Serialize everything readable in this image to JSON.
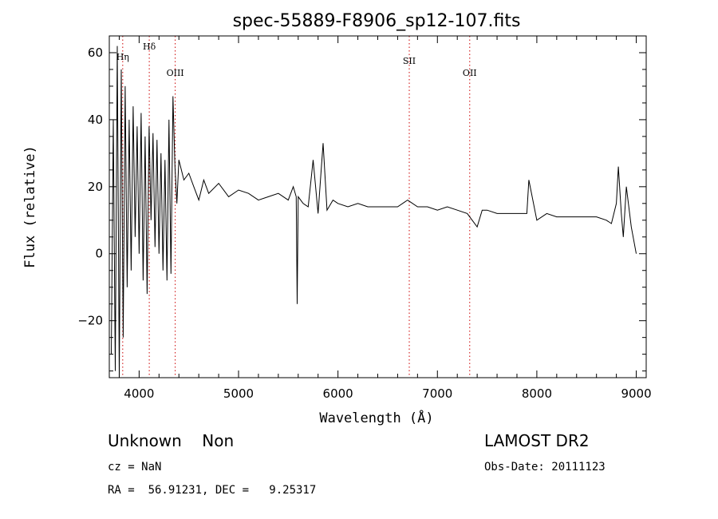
{
  "chart_data": {
    "type": "line",
    "title": "spec-55889-F8906_sp12-107.fits",
    "xlabel": "Wavelength (Å)",
    "ylabel": "Flux (relative)",
    "xlim": [
      3700,
      9100
    ],
    "ylim": [
      -37,
      65
    ],
    "x_ticks": [
      4000,
      5000,
      6000,
      7000,
      8000,
      9000
    ],
    "y_ticks": [
      -20,
      0,
      20,
      40,
      60
    ],
    "grid": false,
    "line_markers": [
      {
        "label": "Hη",
        "x": 3835,
        "color": "#cc0000"
      },
      {
        "label": "Hδ",
        "x": 4102,
        "color": "#cc0000"
      },
      {
        "label": "OIII",
        "x": 4363,
        "color": "#cc0000"
      },
      {
        "label": "SII",
        "x": 6717,
        "color": "#cc0000"
      },
      {
        "label": "OII",
        "x": 7325,
        "color": "#cc0000"
      }
    ],
    "series": [
      {
        "color": "#000000",
        "x": [
          3720,
          3740,
          3760,
          3780,
          3800,
          3820,
          3840,
          3860,
          3880,
          3900,
          3920,
          3940,
          3960,
          3980,
          4000,
          4020,
          4040,
          4060,
          4080,
          4100,
          4120,
          4140,
          4160,
          4180,
          4200,
          4220,
          4240,
          4260,
          4280,
          4300,
          4320,
          4340,
          4360,
          4380,
          4400,
          4450,
          4500,
          4550,
          4600,
          4650,
          4700,
          4800,
          4900,
          5000,
          5100,
          5200,
          5300,
          5400,
          5500,
          5550,
          5580,
          5590,
          5600,
          5650,
          5700,
          5750,
          5800,
          5850,
          5890,
          5950,
          6000,
          6100,
          6200,
          6300,
          6400,
          6500,
          6600,
          6700,
          6800,
          6900,
          7000,
          7100,
          7200,
          7300,
          7400,
          7450,
          7500,
          7600,
          7700,
          7800,
          7900,
          7920,
          8000,
          8100,
          8200,
          8300,
          8400,
          8500,
          8600,
          8700,
          8750,
          8800,
          8820,
          8850,
          8870,
          8900,
          8950,
          9000
        ],
        "values": [
          -30,
          40,
          -35,
          62,
          -37,
          55,
          -25,
          50,
          -10,
          40,
          -5,
          44,
          5,
          38,
          0,
          42,
          -8,
          35,
          -12,
          38,
          10,
          36,
          2,
          34,
          0,
          30,
          -5,
          28,
          -8,
          40,
          -6,
          47,
          26,
          15,
          28,
          22,
          24,
          20,
          16,
          22,
          18,
          21,
          17,
          19,
          18,
          16,
          17,
          18,
          16,
          20,
          17,
          -15,
          17,
          15,
          14,
          28,
          12,
          33,
          13,
          16,
          15,
          14,
          15,
          14,
          14,
          14,
          14,
          16,
          14,
          14,
          13,
          14,
          13,
          12,
          8,
          13,
          13,
          12,
          12,
          12,
          12,
          22,
          10,
          12,
          11,
          11,
          11,
          11,
          11,
          10,
          9,
          15,
          26,
          12,
          5,
          20,
          8,
          0
        ]
      }
    ]
  },
  "info": {
    "class_line": "Unknown    Non",
    "cz_line": "cz = NaN",
    "coords_line": "RA =  56.91231, DEC =   9.25317",
    "survey": "LAMOST DR2",
    "obs_date_line": "Obs-Date: 20111123"
  }
}
